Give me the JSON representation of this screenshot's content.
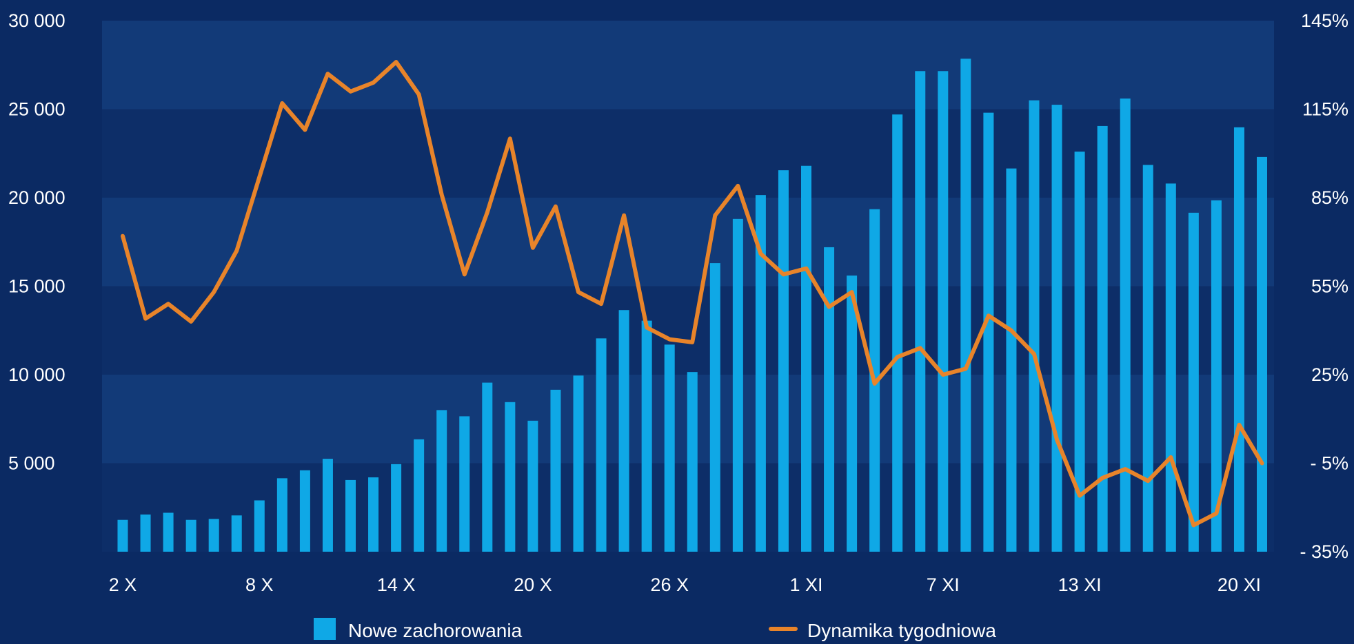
{
  "chart_data": {
    "type": "bar+line",
    "categories": [
      "2 X",
      "3 X",
      "4 X",
      "5 X",
      "6 X",
      "7 X",
      "8 X",
      "9 X",
      "10 X",
      "11 X",
      "12 X",
      "13 X",
      "14 X",
      "15 X",
      "16 X",
      "17 X",
      "18 X",
      "19 X",
      "20 X",
      "21 X",
      "22 X",
      "23 X",
      "24 X",
      "25 X",
      "26 X",
      "27 X",
      "28 X",
      "29 X",
      "30 X",
      "31 X",
      "1 XI",
      "2 XI",
      "3 XI",
      "4 XI",
      "5 XI",
      "6 XI",
      "7 XI",
      "8 XI",
      "9 XI",
      "10 XI",
      "11 XI",
      "12 XI",
      "13 XI",
      "14 XI",
      "15 XI",
      "16 XI",
      "17 XI",
      "18 XI",
      "19 XI",
      "20 XI",
      "21 XI"
    ],
    "x_tick_labels": [
      "2 X",
      "8 X",
      "14 X",
      "20 X",
      "26 X",
      "1 XI",
      "7 XI",
      "13 XI",
      "20 XI"
    ],
    "x_tick_indices": [
      0,
      6,
      12,
      18,
      24,
      30,
      36,
      42,
      49
    ],
    "y_left": {
      "ticks": [
        "30 000",
        "25 000",
        "20 000",
        "15 000",
        "10 000",
        "5 000"
      ],
      "tick_values": [
        30000,
        25000,
        20000,
        15000,
        10000,
        5000
      ],
      "ylim": [
        0,
        30000
      ]
    },
    "y_right": {
      "ticks": [
        "145%",
        "115%",
        "85%",
        "55%",
        "25%",
        "- 5%",
        "- 35%"
      ],
      "tick_values": [
        145,
        115,
        85,
        55,
        25,
        -5,
        -35
      ],
      "ylim": [
        -35,
        145
      ]
    },
    "series": [
      {
        "name": "Nowe zachorowania",
        "kind": "bar",
        "axis": "left",
        "color": "#0fa8e6",
        "values": [
          1800,
          2100,
          2200,
          1800,
          1850,
          2050,
          2900,
          4150,
          4600,
          5250,
          4050,
          4200,
          4950,
          6350,
          8000,
          7650,
          9550,
          8450,
          7400,
          9150,
          9950,
          12050,
          13650,
          13050,
          11700,
          10150,
          16300,
          18800,
          20150,
          21550,
          21800,
          17200,
          15600,
          19350,
          24700,
          27150,
          27150,
          27850,
          24800,
          21650,
          25500,
          25250,
          22600,
          24050,
          25600,
          21850,
          20800,
          19150,
          19850,
          23975,
          22300
        ]
      },
      {
        "name": "Dynamika tygodniowa",
        "kind": "line",
        "axis": "right",
        "color": "#e8842a",
        "values": [
          72,
          44,
          49,
          43,
          53,
          67,
          92,
          117,
          108,
          127,
          121,
          124,
          131,
          120,
          86,
          59,
          80,
          105,
          68,
          82,
          53,
          49,
          79,
          41,
          37,
          36,
          79,
          89,
          66,
          59,
          61,
          48,
          53,
          22,
          31,
          34,
          25,
          27,
          45,
          40,
          32,
          3,
          -16,
          -10,
          -7,
          -11,
          -3,
          -26,
          -22,
          8,
          -5
        ]
      }
    ],
    "legend": {
      "position": "bottom",
      "entries": [
        "Nowe zachorowania",
        "Dynamika tygodniowa"
      ]
    },
    "grid": "horizontal bands",
    "colors": {
      "background": "#0b2a63",
      "band_light": "#123a78",
      "band_dark": "#0d2e68",
      "bar": "#0fa8e6",
      "line": "#e8842a",
      "text": "#ffffff"
    }
  }
}
